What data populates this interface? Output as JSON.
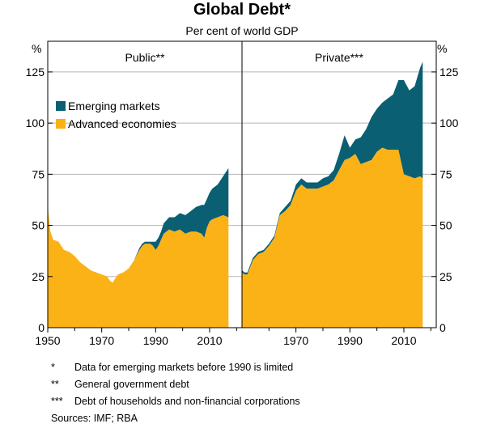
{
  "chart_data": {
    "type": "area",
    "title": "Global Debt*",
    "subtitle": "Per cent of world GDP",
    "y_unit": "%",
    "ylim": [
      0,
      140
    ],
    "yticks": [
      0,
      25,
      50,
      75,
      100,
      125
    ],
    "xlim": [
      1950,
      2022
    ],
    "xticks_left": [
      1950,
      1970,
      1990,
      2010
    ],
    "xticks_right": [
      1970,
      1990,
      2010
    ],
    "grid": true,
    "legend_position": "top-left of left panel",
    "colors": {
      "Emerging markets": "#0a5f73",
      "Advanced economies": "#fbb217"
    },
    "panels": [
      {
        "name": "Public**",
        "series": [
          {
            "name": "Advanced economies",
            "x": [
              1950,
              1951,
              1952,
              1954,
              1956,
              1958,
              1960,
              1962,
              1964,
              1966,
              1968,
              1970,
              1972,
              1973,
              1974,
              1975,
              1976,
              1978,
              1980,
              1982,
              1984,
              1985,
              1986,
              1987,
              1988,
              1989,
              1990,
              1991,
              1992,
              1993,
              1995,
              1997,
              1999,
              2001,
              2003,
              2005,
              2007,
              2008,
              2009,
              2010,
              2011,
              2013,
              2015,
              2017
            ],
            "values": [
              59,
              47,
              43,
              42,
              38,
              37,
              35,
              32,
              30,
              28,
              27,
              26,
              25,
              23,
              22,
              24,
              26,
              27,
              29,
              33,
              38,
              40,
              41,
              41,
              41,
              40,
              38,
              40,
              43,
              46,
              48,
              47,
              48,
              46,
              47,
              47,
              46,
              44,
              49,
              52,
              53,
              54,
              55,
              54
            ]
          },
          {
            "name": "Emerging markets",
            "x": [
              1950,
              1951,
              1952,
              1954,
              1956,
              1958,
              1960,
              1962,
              1964,
              1966,
              1968,
              1970,
              1972,
              1973,
              1974,
              1975,
              1976,
              1978,
              1980,
              1982,
              1984,
              1985,
              1986,
              1987,
              1988,
              1989,
              1990,
              1991,
              1992,
              1993,
              1995,
              1997,
              1999,
              2001,
              2003,
              2005,
              2007,
              2008,
              2009,
              2010,
              2011,
              2013,
              2015,
              2017
            ],
            "values": [
              0,
              0,
              0,
              0,
              0,
              0,
              0,
              0,
              0,
              0,
              0,
              0,
              0,
              0,
              0,
              0,
              0,
              0,
              0,
              0,
              1,
              1,
              1,
              1,
              1,
              2,
              4,
              4,
              4,
              5,
              6,
              7,
              8,
              9,
              10,
              12,
              14,
              16,
              14,
              14,
              15,
              16,
              19,
              24
            ]
          }
        ]
      },
      {
        "name": "Private***",
        "series": [
          {
            "name": "Advanced economies",
            "x": [
              1950,
              1951,
              1952,
              1954,
              1956,
              1958,
              1960,
              1962,
              1964,
              1966,
              1968,
              1970,
              1972,
              1974,
              1976,
              1978,
              1980,
              1982,
              1984,
              1986,
              1988,
              1990,
              1992,
              1994,
              1996,
              1998,
              2000,
              2002,
              2004,
              2006,
              2008,
              2010,
              2012,
              2014,
              2016,
              2017
            ],
            "values": [
              27,
              26,
              26,
              33,
              36,
              37,
              40,
              44,
              55,
              57,
              60,
              67,
              70,
              68,
              68,
              68,
              69,
              70,
              72,
              77,
              82,
              83,
              85,
              80,
              81,
              82,
              86,
              88,
              87,
              87,
              87,
              75,
              74,
              73,
              74,
              73
            ]
          },
          {
            "name": "Emerging markets",
            "x": [
              1950,
              1951,
              1952,
              1954,
              1956,
              1958,
              1960,
              1962,
              1964,
              1966,
              1968,
              1970,
              1972,
              1974,
              1976,
              1978,
              1980,
              1982,
              1984,
              1986,
              1988,
              1990,
              1992,
              1994,
              1996,
              1998,
              2000,
              2002,
              2004,
              2006,
              2008,
              2010,
              2012,
              2014,
              2016,
              2017
            ],
            "values": [
              1,
              1,
              1,
              1,
              1,
              1,
              1,
              1,
              1,
              2,
              2,
              3,
              3,
              3,
              3,
              3,
              4,
              4,
              5,
              8,
              12,
              5,
              7,
              13,
              16,
              21,
              21,
              22,
              25,
              27,
              34,
              46,
              42,
              45,
              53,
              57
            ]
          }
        ]
      }
    ]
  },
  "notes": [
    {
      "marker": "*",
      "text": "Data for emerging markets before 1990 is limited"
    },
    {
      "marker": "**",
      "text": "General government debt"
    },
    {
      "marker": "***",
      "text": "Debt of households and non-financial corporations"
    }
  ],
  "sources": "Sources:  IMF; RBA"
}
